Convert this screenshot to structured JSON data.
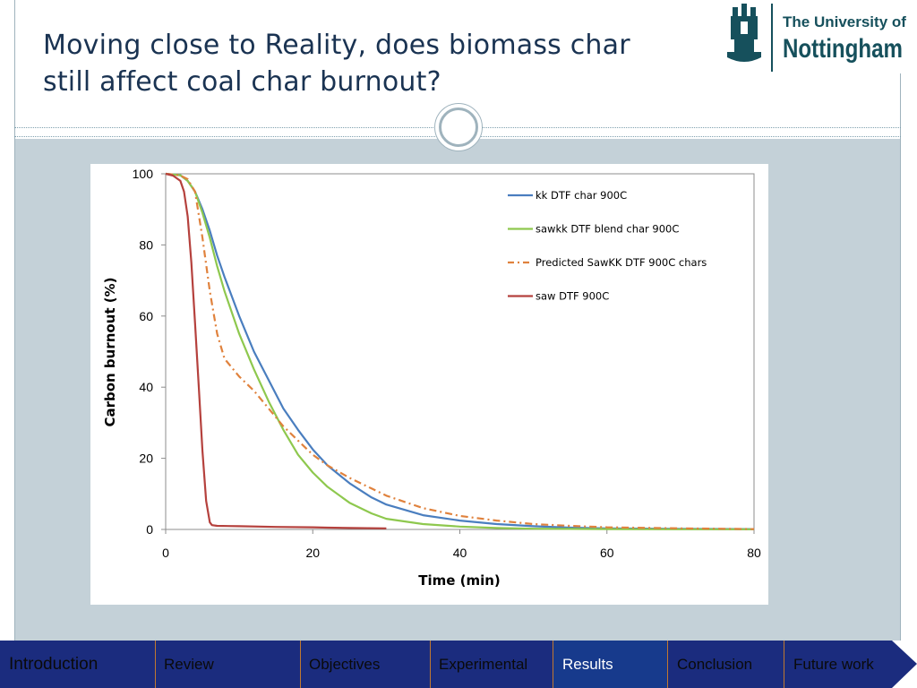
{
  "slide": {
    "title_line1": "Moving close to Reality, does biomass char",
    "title_line2": "still affect coal char burnout?"
  },
  "logo": {
    "line1": "The University of",
    "line2": "Nottingham"
  },
  "colors": {
    "title": "#1a3352",
    "band": "#c4d1d8",
    "nav_bg": "#1b2c7e",
    "nav_active": "#173a8c"
  },
  "chart_data": {
    "type": "line",
    "xlabel": "Time (min)",
    "ylabel": "Carbon burnout (%)",
    "xlim": [
      0,
      80
    ],
    "ylim": [
      0,
      100
    ],
    "x_ticks": [
      0,
      20,
      40,
      60,
      80
    ],
    "y_ticks": [
      0,
      20,
      40,
      60,
      80,
      100
    ],
    "legend_position": "top-right",
    "series": [
      {
        "name": "kk DTF char 900C",
        "color": "#4a7ebf",
        "style": "solid",
        "x": [
          0,
          1,
          2,
          3,
          4,
          5,
          6,
          7,
          8,
          10,
          12,
          14,
          16,
          18,
          20,
          22,
          25,
          28,
          30,
          35,
          40,
          45,
          50,
          55,
          60,
          70,
          80
        ],
        "y": [
          100,
          99.8,
          99.6,
          98,
          95,
          90,
          84,
          77,
          71,
          60,
          50,
          42,
          34,
          28,
          22.5,
          18,
          13,
          9,
          7,
          4,
          2.5,
          1.5,
          0.9,
          0.5,
          0.3,
          0.15,
          0.1
        ]
      },
      {
        "name": "sawkk DTF blend char 900C",
        "color": "#8ec84e",
        "style": "solid",
        "x": [
          0,
          1,
          2,
          3,
          4,
          5,
          6,
          7,
          8,
          10,
          12,
          14,
          16,
          18,
          20,
          22,
          25,
          28,
          30,
          35,
          40,
          45,
          50,
          60,
          70,
          80
        ],
        "y": [
          100,
          99.8,
          99.6,
          98,
          95,
          89,
          82,
          74,
          67,
          55,
          45,
          36,
          28,
          21,
          16,
          12,
          7.5,
          4.5,
          3,
          1.5,
          0.8,
          0.4,
          0.2,
          0.1,
          0.05,
          0.05
        ]
      },
      {
        "name": "Predicted SawKK DTF 900C chars",
        "color": "#e0823d",
        "style": "dashdot",
        "x": [
          0,
          1,
          2,
          3,
          4,
          5,
          6,
          7,
          8,
          10,
          12,
          14,
          16,
          18,
          20,
          22,
          25,
          28,
          30,
          35,
          40,
          45,
          50,
          55,
          60,
          70,
          80
        ],
        "y": [
          100,
          99.8,
          99.5,
          98.5,
          95,
          82,
          67,
          55,
          48,
          43,
          39,
          34,
          29,
          25,
          21,
          18,
          14.5,
          11.5,
          9.5,
          6,
          3.8,
          2.5,
          1.5,
          1,
          0.6,
          0.3,
          0.1
        ]
      },
      {
        "name": "saw DTF 900C",
        "color": "#b5413d",
        "style": "solid",
        "x": [
          0,
          1,
          2,
          2.5,
          3,
          3.5,
          4,
          4.5,
          5,
          5.5,
          6,
          6.3,
          7,
          10,
          15,
          20,
          22,
          25,
          30
        ],
        "y": [
          100,
          99.5,
          98,
          95,
          88,
          75,
          58,
          40,
          22,
          8,
          2,
          1.2,
          1,
          0.9,
          0.7,
          0.6,
          0.5,
          0.4,
          0.3
        ]
      }
    ]
  },
  "nav": {
    "items": [
      "Introduction",
      "Review",
      "Objectives",
      "Experimental",
      "Results",
      "Conclusion",
      "Future work"
    ],
    "active": "Results"
  }
}
